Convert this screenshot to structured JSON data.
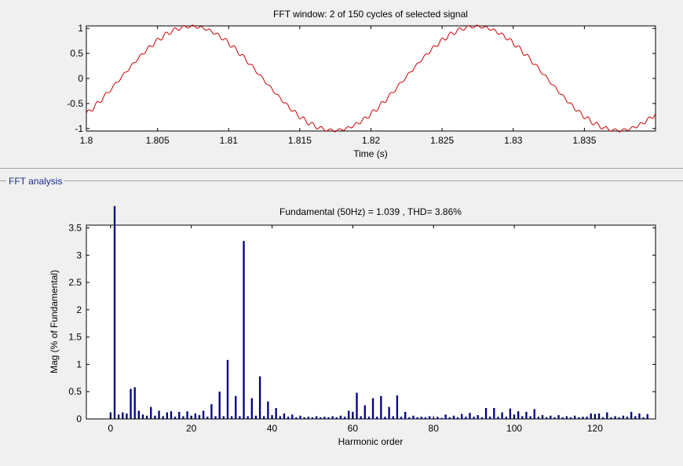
{
  "panel": {
    "label": "FFT analysis"
  },
  "chart_data": [
    {
      "type": "line",
      "title": "FFT window: 2 of 150 cycles of selected signal",
      "xlabel": "Time (s)",
      "ylabel": "",
      "xlim": [
        1.8,
        1.84
      ],
      "ylim": [
        -1.05,
        1.05
      ],
      "x_ticks": [
        "1.8",
        "1.805",
        "1.81",
        "1.815",
        "1.82",
        "1.825",
        "1.83",
        "1.835"
      ],
      "y_ticks": [
        "-1",
        "-0.5",
        "0",
        "0.5",
        "1"
      ],
      "signal": {
        "frequency_hz": 50,
        "amplitude": 1.039,
        "start_phase_s": 1.8,
        "color": "#cc0000",
        "ripple_harmonic": 33,
        "ripple_amplitude": 0.034
      },
      "grid": false
    },
    {
      "type": "bar",
      "title": "Fundamental (50Hz) = 1.039 , THD= 3.86%",
      "xlabel": "Harmonic order",
      "ylabel": "Mag (% of Fundamental)",
      "xlim": [
        -6,
        135
      ],
      "ylim": [
        0,
        3.55
      ],
      "x_ticks": [
        "0",
        "20",
        "40",
        "60",
        "80",
        "100",
        "120"
      ],
      "y_ticks": [
        "0",
        "0.5",
        "1",
        "1.5",
        "2",
        "2.5",
        "3",
        "3.5"
      ],
      "bar_color": "#000080",
      "grid": false,
      "fundamental_clipped": true,
      "harmonics": [
        [
          0,
          0.12
        ],
        [
          1,
          3.9
        ],
        [
          2,
          0.08
        ],
        [
          3,
          0.12
        ],
        [
          4,
          0.1
        ],
        [
          5,
          0.55
        ],
        [
          6,
          0.58
        ],
        [
          7,
          0.15
        ],
        [
          8,
          0.08
        ],
        [
          9,
          0.06
        ],
        [
          10,
          0.22
        ],
        [
          11,
          0.06
        ],
        [
          12,
          0.15
        ],
        [
          13,
          0.05
        ],
        [
          14,
          0.12
        ],
        [
          15,
          0.14
        ],
        [
          16,
          0.04
        ],
        [
          17,
          0.13
        ],
        [
          18,
          0.05
        ],
        [
          19,
          0.14
        ],
        [
          20,
          0.06
        ],
        [
          21,
          0.1
        ],
        [
          22,
          0.07
        ],
        [
          23,
          0.15
        ],
        [
          24,
          0.04
        ],
        [
          25,
          0.27
        ],
        [
          26,
          0.05
        ],
        [
          27,
          0.5
        ],
        [
          28,
          0.05
        ],
        [
          29,
          1.08
        ],
        [
          30,
          0.05
        ],
        [
          31,
          0.42
        ],
        [
          32,
          0.05
        ],
        [
          33,
          3.26
        ],
        [
          34,
          0.05
        ],
        [
          35,
          0.38
        ],
        [
          36,
          0.06
        ],
        [
          37,
          0.78
        ],
        [
          38,
          0.05
        ],
        [
          39,
          0.32
        ],
        [
          40,
          0.07
        ],
        [
          41,
          0.2
        ],
        [
          42,
          0.05
        ],
        [
          43,
          0.1
        ],
        [
          44,
          0.04
        ],
        [
          45,
          0.08
        ],
        [
          46,
          0.03
        ],
        [
          47,
          0.06
        ],
        [
          48,
          0.03
        ],
        [
          49,
          0.04
        ],
        [
          50,
          0.03
        ],
        [
          51,
          0.05
        ],
        [
          52,
          0.03
        ],
        [
          53,
          0.04
        ],
        [
          54,
          0.03
        ],
        [
          55,
          0.05
        ],
        [
          56,
          0.03
        ],
        [
          57,
          0.06
        ],
        [
          58,
          0.04
        ],
        [
          59,
          0.15
        ],
        [
          60,
          0.13
        ],
        [
          61,
          0.48
        ],
        [
          62,
          0.05
        ],
        [
          63,
          0.25
        ],
        [
          64,
          0.04
        ],
        [
          65,
          0.38
        ],
        [
          66,
          0.04
        ],
        [
          67,
          0.42
        ],
        [
          68,
          0.04
        ],
        [
          69,
          0.22
        ],
        [
          70,
          0.05
        ],
        [
          71,
          0.43
        ],
        [
          72,
          0.04
        ],
        [
          73,
          0.13
        ],
        [
          74,
          0.03
        ],
        [
          75,
          0.06
        ],
        [
          76,
          0.03
        ],
        [
          77,
          0.04
        ],
        [
          78,
          0.03
        ],
        [
          79,
          0.05
        ],
        [
          80,
          0.02
        ],
        [
          81,
          0.04
        ],
        [
          82,
          0.02
        ],
        [
          83,
          0.08
        ],
        [
          84,
          0.03
        ],
        [
          85,
          0.06
        ],
        [
          86,
          0.03
        ],
        [
          87,
          0.09
        ],
        [
          88,
          0.04
        ],
        [
          89,
          0.11
        ],
        [
          90,
          0.04
        ],
        [
          91,
          0.07
        ],
        [
          92,
          0.03
        ],
        [
          93,
          0.2
        ],
        [
          94,
          0.04
        ],
        [
          95,
          0.2
        ],
        [
          96,
          0.04
        ],
        [
          97,
          0.12
        ],
        [
          98,
          0.04
        ],
        [
          99,
          0.19
        ],
        [
          100,
          0.08
        ],
        [
          101,
          0.14
        ],
        [
          102,
          0.05
        ],
        [
          103,
          0.13
        ],
        [
          104,
          0.05
        ],
        [
          105,
          0.18
        ],
        [
          106,
          0.04
        ],
        [
          107,
          0.07
        ],
        [
          108,
          0.03
        ],
        [
          109,
          0.06
        ],
        [
          110,
          0.03
        ],
        [
          111,
          0.07
        ],
        [
          112,
          0.03
        ],
        [
          113,
          0.05
        ],
        [
          114,
          0.03
        ],
        [
          115,
          0.06
        ],
        [
          116,
          0.03
        ],
        [
          117,
          0.04
        ],
        [
          118,
          0.04
        ],
        [
          119,
          0.1
        ],
        [
          120,
          0.09
        ],
        [
          121,
          0.1
        ],
        [
          122,
          0.03
        ],
        [
          123,
          0.12
        ],
        [
          124,
          0.03
        ],
        [
          125,
          0.05
        ],
        [
          126,
          0.03
        ],
        [
          127,
          0.06
        ],
        [
          128,
          0.04
        ],
        [
          129,
          0.13
        ],
        [
          130,
          0.05
        ],
        [
          131,
          0.1
        ],
        [
          132,
          0.03
        ],
        [
          133,
          0.09
        ]
      ]
    }
  ]
}
